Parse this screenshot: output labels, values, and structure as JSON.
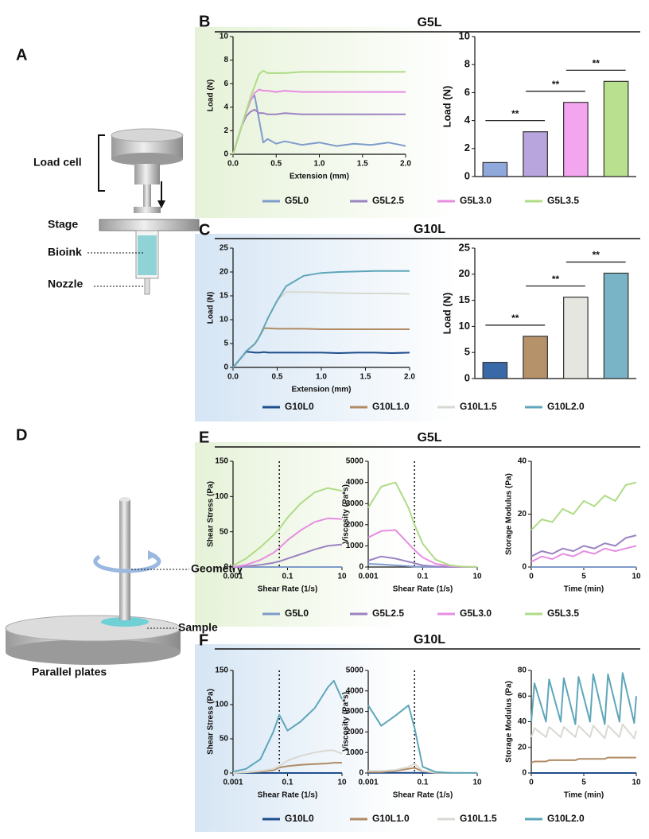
{
  "panel_labels": [
    "A",
    "B",
    "C",
    "D",
    "E",
    "F"
  ],
  "diagram_a": {
    "labels": [
      "Load cell",
      "Stage",
      "Bioink",
      "Nozzle"
    ]
  },
  "diagram_d": {
    "labels": [
      "Geometry",
      "Sample",
      "Parallel plates"
    ]
  },
  "chart_data": [
    {
      "type": "line",
      "title": "G5L",
      "xlabel": "Extension (mm)",
      "ylabel": "Load (N)",
      "legend": true,
      "xlim": [
        0,
        2
      ],
      "xticks": [
        {
          "value": 0,
          "label": "0.0"
        },
        0.5,
        {
          "value": 1,
          "label": "1.0"
        },
        1.5,
        {
          "value": 2,
          "label": "2.0"
        }
      ],
      "ylim": [
        0,
        10
      ],
      "yticks": [
        0,
        2,
        4,
        6,
        8,
        10
      ],
      "x": [
        0,
        0.05,
        0.1,
        0.15,
        0.2,
        0.25,
        0.3,
        0.35,
        0.4,
        0.5,
        0.6,
        0.8,
        1.0,
        1.2,
        1.4,
        1.6,
        1.8,
        2.0
      ],
      "series": [
        {
          "name": "G5L0",
          "color": "#7f9bcb",
          "values": [
            0,
            1.2,
            2.4,
            3.6,
            4.6,
            5,
            3,
            1,
            1.3,
            0.9,
            1.1,
            0.8,
            1.0,
            0.7,
            0.9,
            0.8,
            1.0,
            0.7
          ]
        },
        {
          "name": "G5L2.5",
          "color": "#9c83c2",
          "values": [
            0,
            1.2,
            2.4,
            3.2,
            3.6,
            3.8,
            3.5,
            3.5,
            3.4,
            3.4,
            3.5,
            3.4,
            3.4,
            3.4,
            3.4,
            3.4,
            3.4,
            3.4
          ]
        },
        {
          "name": "G5L3.0",
          "color": "#e78de2",
          "values": [
            0,
            1.2,
            2.4,
            3.5,
            4.5,
            5.2,
            5.5,
            5.4,
            5.4,
            5.3,
            5.4,
            5.3,
            5.3,
            5.3,
            5.3,
            5.3,
            5.3,
            5.3
          ]
        },
        {
          "name": "G5L3.5",
          "color": "#afdc85",
          "values": [
            0,
            1.2,
            2.4,
            3.6,
            4.8,
            5.8,
            6.8,
            7.1,
            6.9,
            6.9,
            6.9,
            7.0,
            7.0,
            7.0,
            7.0,
            7.0,
            7.0,
            7.0
          ]
        }
      ]
    },
    {
      "type": "bar",
      "ylabel": "Load (N)",
      "ylim": [
        0,
        10
      ],
      "yticks": [
        0,
        2,
        4,
        6,
        8,
        10
      ],
      "categories": [
        null,
        null,
        null,
        null
      ],
      "values": [
        1.0,
        3.2,
        5.3,
        6.8
      ],
      "colors": [
        "#8fa9dc",
        "#b9a5dd",
        "#f3a5ef",
        "#b8e08e"
      ],
      "annotations": [
        "**",
        "**",
        "**"
      ]
    },
    {
      "type": "line",
      "title": "G10L",
      "xlabel": "Extension (mm)",
      "ylabel": "Load (N)",
      "legend": true,
      "xlim": [
        0,
        2
      ],
      "xticks": [
        {
          "value": 0,
          "label": "0.0"
        },
        0.5,
        {
          "value": 1,
          "label": "1.0"
        },
        1.5,
        {
          "value": 2,
          "label": "2.0"
        }
      ],
      "ylim": [
        0,
        25
      ],
      "yticks": [
        0,
        5,
        10,
        15,
        20,
        25
      ],
      "x": [
        0,
        0.05,
        0.1,
        0.15,
        0.2,
        0.25,
        0.3,
        0.35,
        0.4,
        0.5,
        0.6,
        0.8,
        1.0,
        1.2,
        1.4,
        1.6,
        1.8,
        2.0
      ],
      "series": [
        {
          "name": "G10L0",
          "color": "#1f4e8c",
          "values": [
            0,
            1.1,
            2.2,
            3.3,
            3.2,
            3.1,
            3.1,
            3.2,
            3.1,
            3.1,
            3.1,
            3.1,
            3.1,
            3.0,
            3.1,
            3.1,
            3.0,
            3.1
          ]
        },
        {
          "name": "G10L1.0",
          "color": "#b08b64",
          "values": [
            0,
            1.1,
            2.2,
            3.4,
            4.2,
            5.0,
            6.5,
            8.2,
            8.2,
            8.1,
            8.1,
            8.1,
            8.0,
            8.0,
            8.0,
            8.0,
            8.0,
            8.0
          ]
        },
        {
          "name": "G10L1.5",
          "color": "#d9d9d2",
          "values": [
            0,
            1.1,
            2.2,
            3.4,
            4.2,
            5.0,
            6.5,
            8.5,
            10.5,
            14,
            15.8,
            15.8,
            15.7,
            15.6,
            15.5,
            15.5,
            15.5,
            15.4
          ]
        },
        {
          "name": "G10L2.0",
          "color": "#5ea6b9",
          "values": [
            0,
            1.1,
            2.2,
            3.4,
            4.2,
            5.0,
            6.5,
            8.5,
            10.5,
            14,
            17,
            19.2,
            19.8,
            20,
            20.1,
            20.2,
            20.2,
            20.2
          ]
        }
      ]
    },
    {
      "type": "bar",
      "ylabel": "Load (N)",
      "ylim": [
        0,
        25
      ],
      "yticks": [
        0,
        5,
        10,
        15,
        20,
        25
      ],
      "categories": [
        null,
        null,
        null,
        null
      ],
      "values": [
        3.1,
        8.1,
        15.6,
        20.2
      ],
      "colors": [
        "#3a69a8",
        "#b5926a",
        "#e6e6e0",
        "#79b4c6"
      ],
      "annotations": [
        "**",
        "**",
        "**"
      ]
    },
    {
      "type": "line",
      "title": "G5L",
      "xlabel": "Shear Rate (1/s)",
      "ylabel": "Shear Stress (Pa)",
      "legend": true,
      "xscale": "log",
      "xlim": [
        0.001,
        10
      ],
      "xticks": [
        0.001,
        0.1,
        10
      ],
      "ylim": [
        0,
        150
      ],
      "yticks": [
        0,
        50,
        100,
        150
      ],
      "vline": 0.05,
      "x": [
        0.001,
        0.003,
        0.01,
        0.03,
        0.05,
        0.1,
        0.3,
        1,
        3,
        10
      ],
      "series": [
        {
          "name": "G5L0",
          "color": "#7f9bcb",
          "values": [
            0,
            0,
            0,
            0,
            0,
            0,
            0,
            0,
            0,
            0
          ]
        },
        {
          "name": "G5L2.5",
          "color": "#9c83c2",
          "values": [
            0,
            1,
            3,
            6,
            8,
            12,
            18,
            25,
            30,
            32
          ]
        },
        {
          "name": "G5L3.0",
          "color": "#e78de2",
          "values": [
            0,
            3,
            10,
            20,
            27,
            38,
            52,
            64,
            69,
            68
          ]
        },
        {
          "name": "G5L3.5",
          "color": "#afdc85",
          "values": [
            2,
            12,
            28,
            45,
            54,
            70,
            90,
            106,
            112,
            108
          ]
        }
      ]
    },
    {
      "type": "line",
      "xlabel": "Shear Rate (1/s)",
      "ylabel": "Viscosity (Pa*s)",
      "xscale": "log",
      "xlim": [
        0.001,
        10
      ],
      "xticks": [
        0.001,
        0.1,
        10
      ],
      "ylim": [
        0,
        5000
      ],
      "yticks": [
        0,
        1000,
        2000,
        3000,
        4000,
        5000
      ],
      "vline": 0.05,
      "x": [
        0.001,
        0.003,
        0.01,
        0.03,
        0.05,
        0.1,
        0.3,
        1,
        3,
        10
      ],
      "series": [
        {
          "color": "#7f9bcb",
          "values": [
            150,
            120,
            80,
            40,
            20,
            10,
            5,
            2,
            1,
            0
          ]
        },
        {
          "color": "#9c83c2",
          "values": [
            300,
            500,
            400,
            250,
            180,
            80,
            30,
            10,
            3,
            1
          ]
        },
        {
          "color": "#e78de2",
          "values": [
            1400,
            1700,
            1750,
            1100,
            800,
            450,
            150,
            40,
            10,
            2
          ]
        },
        {
          "color": "#afdc85",
          "values": [
            2800,
            3800,
            4000,
            2800,
            2000,
            1100,
            350,
            80,
            20,
            5
          ]
        }
      ]
    },
    {
      "type": "line",
      "xlabel": "Time (min)",
      "ylabel": "Storage Modulus (Pa)",
      "xlim": [
        0,
        10
      ],
      "xticks": [
        0,
        5,
        10
      ],
      "ylim": [
        0,
        40
      ],
      "yticks": [
        0,
        20,
        40
      ],
      "x": [
        0,
        1,
        2,
        3,
        4,
        5,
        6,
        7,
        8,
        9,
        10
      ],
      "series": [
        {
          "color": "#7f9bcb",
          "values": [
            0,
            0,
            0,
            0,
            0,
            0,
            0,
            0,
            0,
            0,
            0
          ]
        },
        {
          "color": "#9c83c2",
          "values": [
            4,
            6,
            5,
            7,
            6,
            8,
            7,
            9,
            8,
            11,
            12
          ]
        },
        {
          "color": "#e78de2",
          "values": [
            2,
            4,
            3,
            5,
            4,
            6,
            5,
            7,
            6,
            7,
            8
          ]
        },
        {
          "color": "#afdc85",
          "values": [
            14,
            18,
            17,
            22,
            20,
            25,
            23,
            27,
            25,
            31,
            32
          ]
        }
      ]
    },
    {
      "type": "line",
      "title": "G10L",
      "xlabel": "Shear Rate (1/s)",
      "ylabel": "Shear Stress (Pa)",
      "legend": true,
      "xscale": "log",
      "xlim": [
        0.001,
        10
      ],
      "xticks": [
        0.001,
        0.1,
        10
      ],
      "ylim": [
        0,
        150
      ],
      "yticks": [
        0,
        50,
        100,
        150
      ],
      "vline": 0.05,
      "x": [
        0.001,
        0.003,
        0.01,
        0.03,
        0.05,
        0.1,
        0.3,
        1,
        3,
        5,
        10
      ],
      "series": [
        {
          "name": "G10L0",
          "color": "#1f4e8c",
          "values": [
            0,
            0,
            0,
            0,
            0,
            0,
            0,
            0,
            0,
            0,
            0
          ]
        },
        {
          "name": "G10L1.0",
          "color": "#b08b64",
          "values": [
            0,
            1,
            2,
            4,
            8,
            10,
            12,
            13,
            14,
            15,
            15
          ]
        },
        {
          "name": "G10L1.5",
          "color": "#d9d9d2",
          "values": [
            0,
            1,
            3,
            6,
            10,
            18,
            25,
            30,
            33,
            33,
            28
          ]
        },
        {
          "name": "G10L2.0",
          "color": "#5ea6b9",
          "values": [
            2,
            6,
            20,
            60,
            85,
            62,
            75,
            95,
            125,
            135,
            108
          ]
        }
      ]
    },
    {
      "type": "line",
      "xlabel": "Shear Rate (1/s)",
      "ylabel": "Viscosity (Pa*s)",
      "xscale": "log",
      "xlim": [
        0.001,
        10
      ],
      "xticks": [
        0.001,
        0.1,
        10
      ],
      "ylim": [
        0,
        5000
      ],
      "yticks": [
        0,
        1000,
        2000,
        3000,
        4000,
        5000
      ],
      "vline": 0.05,
      "x": [
        0.001,
        0.003,
        0.01,
        0.03,
        0.05,
        0.1,
        0.3,
        1,
        3,
        5,
        10
      ],
      "series": [
        {
          "color": "#1f4e8c",
          "values": [
            10,
            10,
            10,
            10,
            10,
            5,
            2,
            1,
            1,
            1,
            1
          ]
        },
        {
          "color": "#b08b64",
          "values": [
            50,
            50,
            100,
            200,
            250,
            80,
            10,
            3,
            1,
            1,
            1
          ]
        },
        {
          "color": "#d9d9d2",
          "values": [
            100,
            100,
            150,
            300,
            450,
            100,
            20,
            5,
            2,
            1,
            1
          ]
        },
        {
          "color": "#5ea6b9",
          "values": [
            3300,
            2300,
            2800,
            3300,
            2200,
            300,
            50,
            10,
            5,
            3,
            2
          ]
        }
      ]
    },
    {
      "type": "line",
      "xlabel": "Time (min)",
      "ylabel": "Storage Modulus (Pa)",
      "xlim": [
        0,
        10
      ],
      "xticks": [
        0,
        5,
        10
      ],
      "ylim": [
        0,
        80
      ],
      "yticks": [
        0,
        20,
        40,
        60,
        80
      ],
      "x": [
        0,
        0.3,
        1.4,
        1.7,
        2.8,
        3.1,
        4.2,
        4.5,
        5.6,
        5.9,
        7.0,
        7.3,
        8.4,
        8.7,
        9.8,
        10
      ],
      "series": [
        {
          "color": "#1f4e8c",
          "values": [
            0,
            0,
            0,
            0,
            0,
            0,
            0,
            0,
            0,
            0,
            0,
            0,
            0,
            0,
            0,
            0
          ]
        },
        {
          "color": "#b08b64",
          "values": [
            8,
            9,
            9,
            10,
            10,
            10,
            10,
            11,
            11,
            11,
            11,
            12,
            12,
            12,
            12,
            12
          ]
        },
        {
          "color": "#d9d9d2",
          "values": [
            28,
            35,
            28,
            36,
            28,
            36,
            28,
            37,
            28,
            37,
            27,
            37,
            28,
            38,
            27,
            33
          ]
        },
        {
          "color": "#5ea6b9",
          "values": [
            40,
            70,
            40,
            73,
            40,
            74,
            38,
            75,
            40,
            77,
            38,
            77,
            40,
            78,
            39,
            60
          ]
        }
      ]
    }
  ]
}
